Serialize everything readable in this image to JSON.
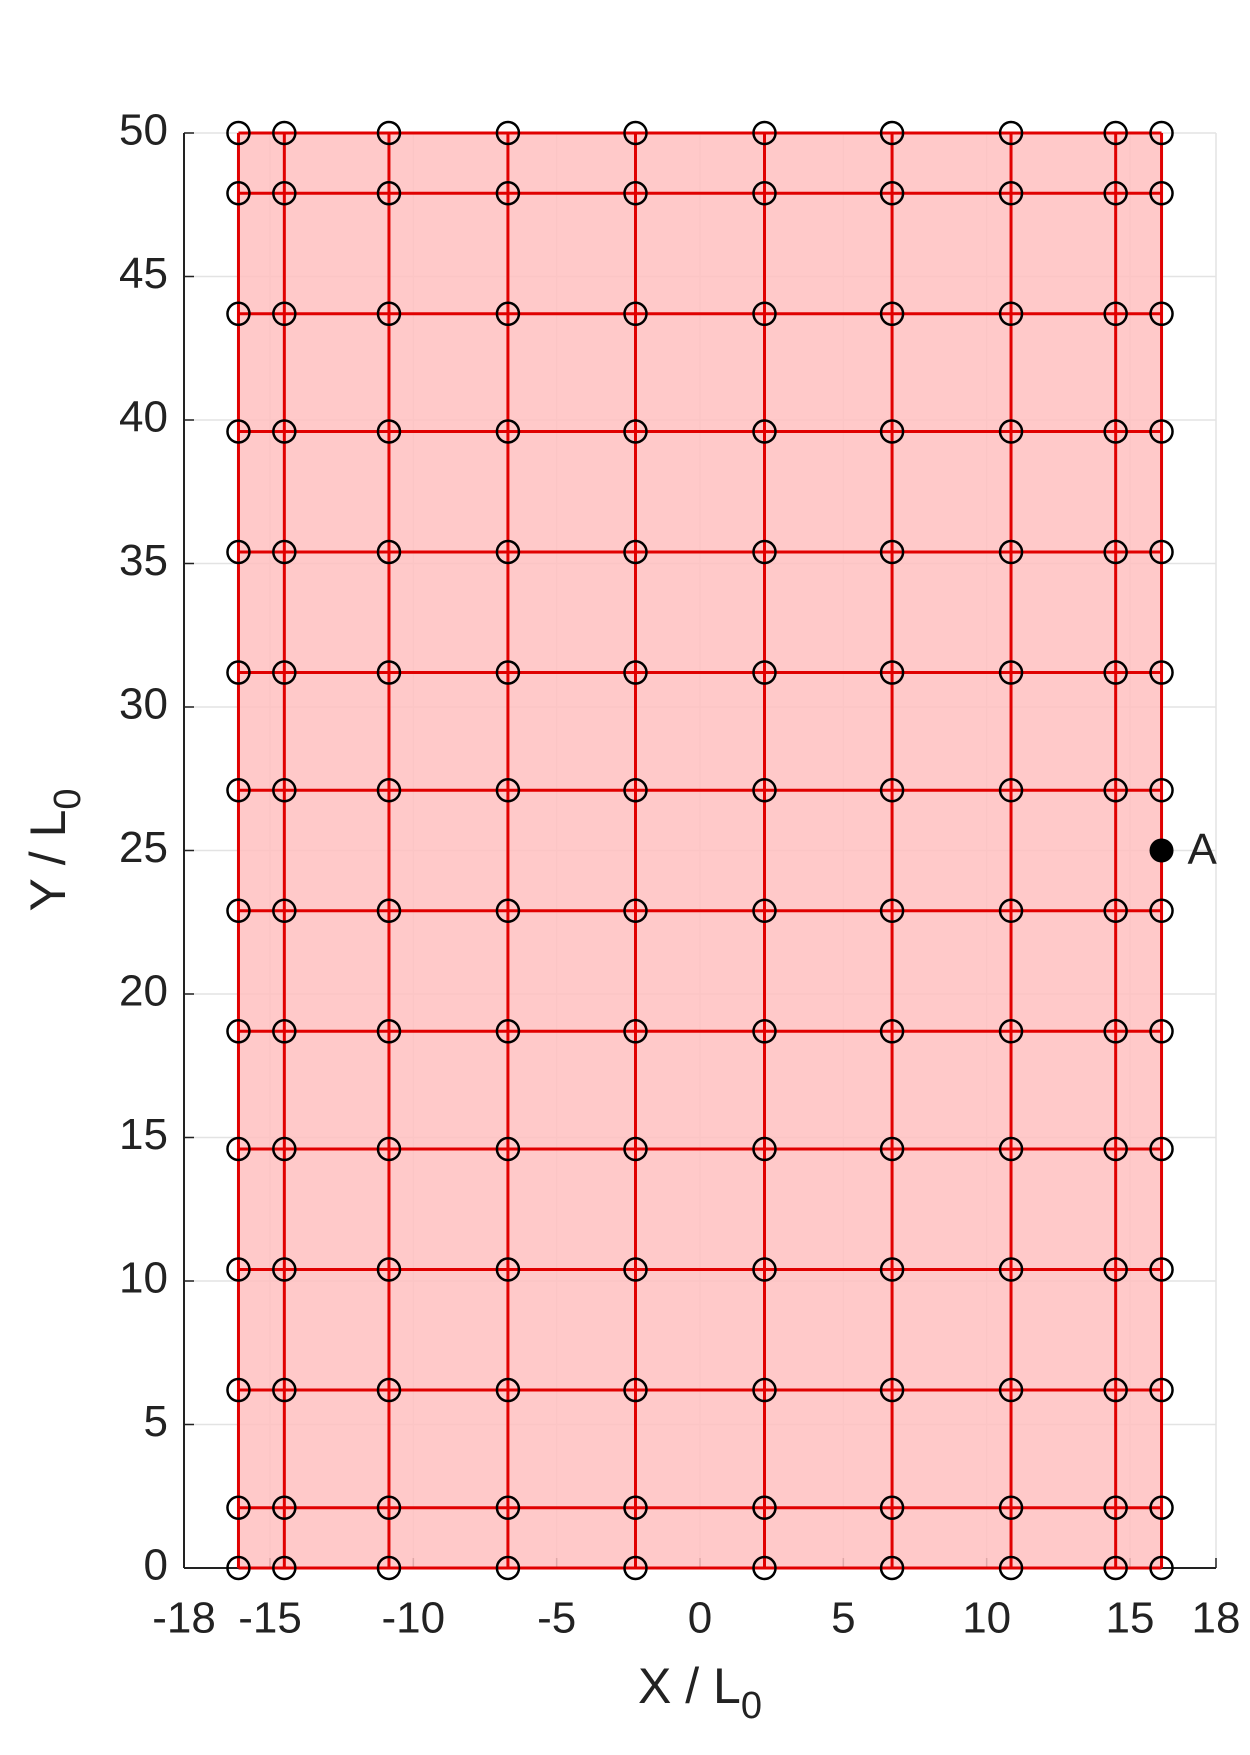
{
  "chart_data": {
    "type": "mesh",
    "x_label": {
      "text": "X / L",
      "subscript": "0"
    },
    "y_label": {
      "text": "Y / L",
      "subscript": "0"
    },
    "node_x": [
      -16.1,
      -14.5,
      -10.85,
      -6.7,
      -2.25,
      2.25,
      6.7,
      10.85,
      14.5,
      16.1
    ],
    "node_y": [
      0,
      2.1,
      6.2,
      10.4,
      14.6,
      18.7,
      22.9,
      27.1,
      31.2,
      35.4,
      39.6,
      43.7,
      47.9,
      50
    ],
    "color": "#e00000",
    "fill_color": "#ffbfbf",
    "marker_color": "#000000",
    "point": {
      "name": "A",
      "x": 16.1,
      "y": 25
    },
    "xlim": [
      -18,
      18
    ],
    "xticks": [
      -18,
      -15,
      -10,
      -5,
      0,
      5,
      10,
      15,
      18
    ],
    "ylim": [
      0,
      50
    ],
    "yticks": [
      0,
      5,
      10,
      15,
      20,
      25,
      30,
      35,
      40,
      45,
      50
    ],
    "grid": true
  }
}
